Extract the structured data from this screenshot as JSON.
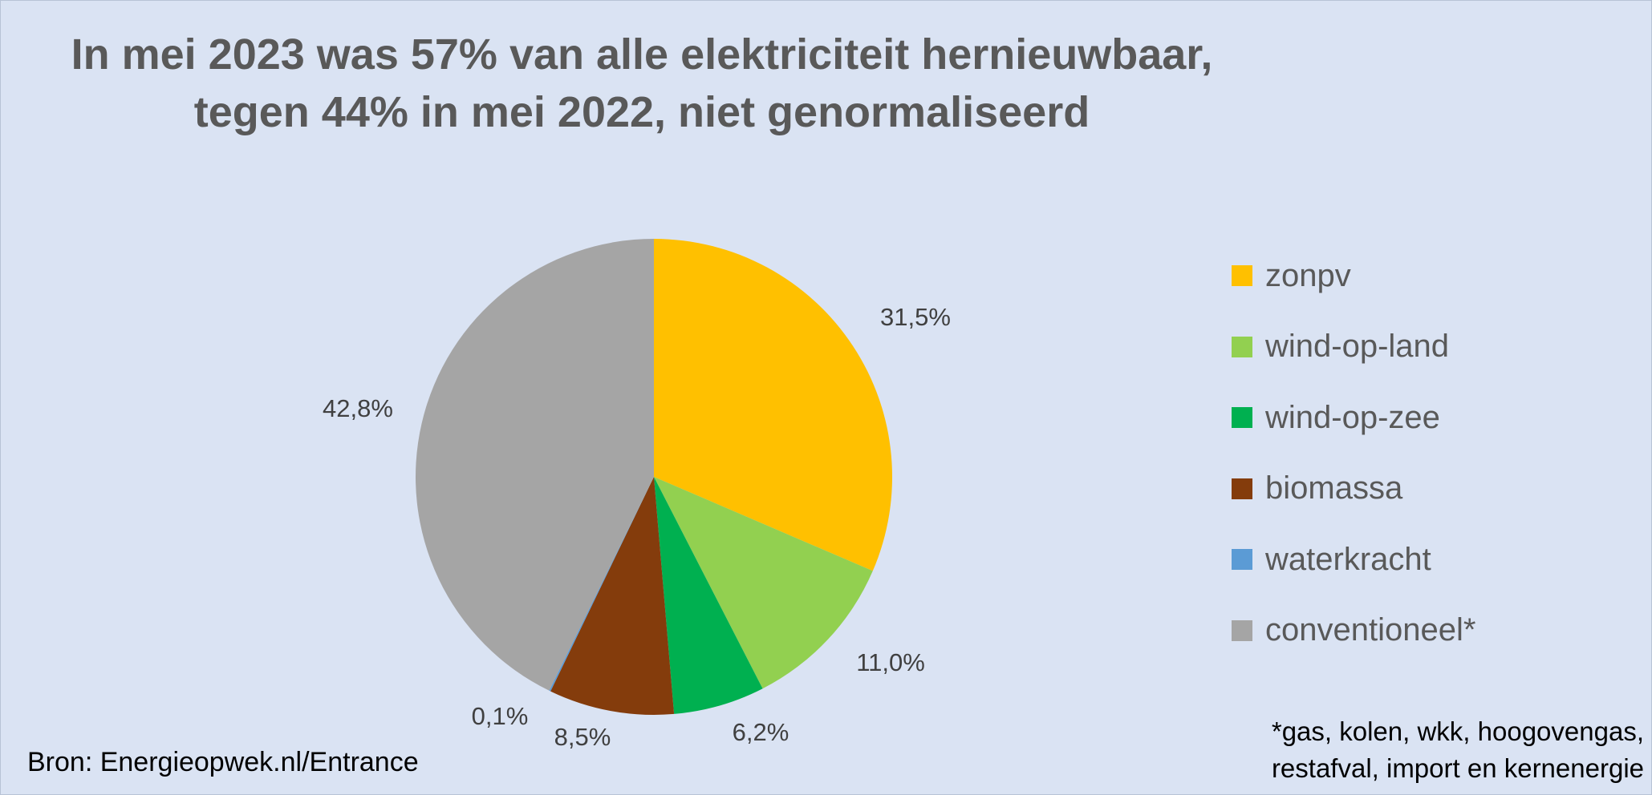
{
  "chart_data": {
    "type": "pie",
    "title": [
      "In mei 2023 was 57% van alle elektriciteit hernieuwbaar,",
      "tegen 44% in mei 2022, niet genormaliseerd"
    ],
    "slices": [
      {
        "name": "zonpv",
        "value": 31.5,
        "label": "31,5%",
        "color": "#ffc000"
      },
      {
        "name": "wind-op-land",
        "value": 11.0,
        "label": "11,0%",
        "color": "#92d050"
      },
      {
        "name": "wind-op-zee",
        "value": 6.2,
        "label": "6,2%",
        "color": "#00b050"
      },
      {
        "name": "biomassa",
        "value": 8.5,
        "label": "8,5%",
        "color": "#843c0c"
      },
      {
        "name": "waterkracht",
        "value": 0.1,
        "label": "0,1%",
        "color": "#5b9bd5"
      },
      {
        "name": "conventioneel*",
        "value": 42.8,
        "label": "42,8%",
        "color": "#a5a5a5"
      }
    ],
    "legend_position": "right"
  },
  "source": "Bron: Energieopwek.nl/Entrance",
  "footnote": [
    "*gas, kolen, wkk, hoogovengas,",
    "restafval, import en kernenergie"
  ]
}
